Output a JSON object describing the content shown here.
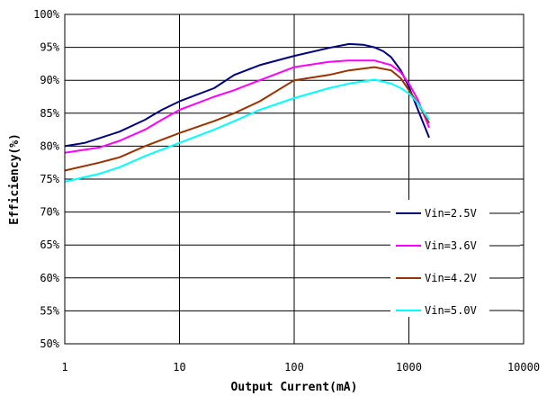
{
  "chart_data": {
    "type": "line",
    "xscale": "log",
    "xlim": [
      1,
      10000
    ],
    "ylim": [
      50,
      100
    ],
    "xticks": [
      1,
      10,
      100,
      1000,
      10000
    ],
    "xtick_labels": [
      "1",
      "10",
      "100",
      "1000",
      "10000"
    ],
    "yticks": [
      50,
      55,
      60,
      65,
      70,
      75,
      80,
      85,
      90,
      95,
      100
    ],
    "ytick_labels": [
      "50%",
      "55%",
      "60%",
      "65%",
      "70%",
      "75%",
      "80%",
      "85%",
      "90%",
      "95%",
      "100%"
    ],
    "xlabel": "Output Current(mA)",
    "ylabel": "Efficiency(%)",
    "grid": true,
    "legend_position": "bottom-right",
    "series": [
      {
        "name": "Vin=2.5V",
        "color": "#000080",
        "x": [
          1,
          1.5,
          2,
          3,
          5,
          7,
          10,
          20,
          30,
          50,
          100,
          200,
          300,
          400,
          500,
          600,
          700,
          850,
          1000,
          1200,
          1500
        ],
        "y": [
          80.0,
          80.5,
          81.2,
          82.2,
          84.0,
          85.5,
          86.8,
          88.8,
          90.8,
          92.3,
          93.7,
          94.9,
          95.5,
          95.4,
          95.0,
          94.4,
          93.5,
          91.5,
          89.0,
          85.5,
          81.3
        ]
      },
      {
        "name": "Vin=3.6V",
        "color": "#ff00ff",
        "x": [
          1,
          2,
          3,
          5,
          7,
          10,
          20,
          30,
          50,
          100,
          200,
          300,
          500,
          700,
          850,
          1000,
          1200,
          1500
        ],
        "y": [
          79.0,
          79.8,
          80.8,
          82.5,
          84.0,
          85.5,
          87.5,
          88.5,
          90.0,
          92.0,
          92.8,
          93.0,
          93.0,
          92.3,
          91.2,
          89.5,
          87.0,
          82.8
        ]
      },
      {
        "name": "Vin=4.2V",
        "color": "#993300",
        "x": [
          1,
          2,
          3,
          5,
          10,
          20,
          30,
          50,
          100,
          200,
          300,
          500,
          700,
          850,
          1000,
          1200,
          1500
        ],
        "y": [
          76.3,
          77.5,
          78.3,
          80.0,
          82.0,
          83.8,
          85.0,
          86.8,
          90.0,
          90.8,
          91.5,
          92.0,
          91.5,
          90.3,
          88.5,
          86.5,
          83.5
        ]
      },
      {
        "name": "Vin=5.0V",
        "color": "#00ffff",
        "x": [
          1,
          2,
          3,
          5,
          10,
          20,
          30,
          50,
          100,
          200,
          300,
          500,
          700,
          850,
          1000,
          1200,
          1500
        ],
        "y": [
          74.6,
          75.8,
          76.8,
          78.5,
          80.5,
          82.5,
          83.8,
          85.5,
          87.3,
          88.8,
          89.5,
          90.1,
          89.5,
          88.8,
          88.0,
          86.5,
          84.0
        ]
      }
    ]
  }
}
